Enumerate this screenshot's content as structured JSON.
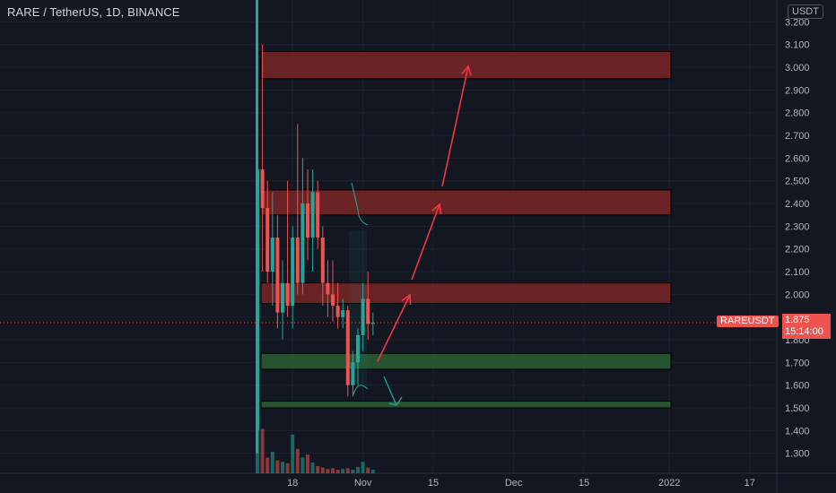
{
  "header": {
    "title": "RARE / TetherUS, 1D, BINANCE",
    "currency": "USDT"
  },
  "price_tag": {
    "symbol": "RAREUSDT",
    "price": "1.875",
    "countdown": "15:14:00"
  },
  "colors": {
    "background": "#131722",
    "up": "#26a69a",
    "down": "#ef5350",
    "resistance_zone": "#7a2626",
    "support_zone": "#2b5e34",
    "arrow": "#f23645"
  },
  "chart_data": {
    "type": "candlestick",
    "symbol": "RARE / TetherUS",
    "interval": "1D",
    "exchange": "BINANCE",
    "currency": "USDT",
    "y_ticks": [
      "1.300",
      "1.400",
      "1.500",
      "1.600",
      "1.700",
      "1.800",
      "1.900",
      "2.000",
      "2.100",
      "2.200",
      "2.300",
      "2.400",
      "2.500",
      "2.600",
      "2.700",
      "2.800",
      "2.900",
      "3.000",
      "3.100",
      "3.200"
    ],
    "x_ticks": [
      "18",
      "Nov",
      "15",
      "Dec",
      "15",
      "2022",
      "17"
    ],
    "last_price": 1.875,
    "candles": [
      {
        "date": "2021-10-11",
        "o": 1.4,
        "h": 3.6,
        "l": 1.3,
        "c": 2.55
      },
      {
        "date": "2021-10-12",
        "o": 2.55,
        "h": 3.1,
        "l": 2.1,
        "c": 2.38
      },
      {
        "date": "2021-10-13",
        "o": 2.38,
        "h": 2.5,
        "l": 2.05,
        "c": 2.1
      },
      {
        "date": "2021-10-14",
        "o": 2.1,
        "h": 2.45,
        "l": 1.95,
        "c": 2.25
      },
      {
        "date": "2021-10-15",
        "o": 2.25,
        "h": 2.35,
        "l": 1.85,
        "c": 1.92
      },
      {
        "date": "2021-10-16",
        "o": 1.92,
        "h": 2.15,
        "l": 1.8,
        "c": 2.05
      },
      {
        "date": "2021-10-17",
        "o": 2.05,
        "h": 2.5,
        "l": 1.9,
        "c": 1.95
      },
      {
        "date": "2021-10-18",
        "o": 1.95,
        "h": 2.3,
        "l": 1.85,
        "c": 2.25
      },
      {
        "date": "2021-10-19",
        "o": 2.25,
        "h": 2.75,
        "l": 2.0,
        "c": 2.05
      },
      {
        "date": "2021-10-20",
        "o": 2.05,
        "h": 2.6,
        "l": 2.0,
        "c": 2.4
      },
      {
        "date": "2021-10-21",
        "o": 2.4,
        "h": 2.55,
        "l": 2.15,
        "c": 2.25
      },
      {
        "date": "2021-10-22",
        "o": 2.25,
        "h": 2.55,
        "l": 2.1,
        "c": 2.45
      },
      {
        "date": "2021-10-23",
        "o": 2.45,
        "h": 2.5,
        "l": 2.2,
        "c": 2.25
      },
      {
        "date": "2021-10-24",
        "o": 2.25,
        "h": 2.3,
        "l": 1.95,
        "c": 2.05
      },
      {
        "date": "2021-10-25",
        "o": 2.05,
        "h": 2.15,
        "l": 1.9,
        "c": 2.0
      },
      {
        "date": "2021-10-26",
        "o": 2.0,
        "h": 2.15,
        "l": 1.88,
        "c": 1.95
      },
      {
        "date": "2021-10-27",
        "o": 1.95,
        "h": 2.05,
        "l": 1.85,
        "c": 1.9
      },
      {
        "date": "2021-10-28",
        "o": 1.9,
        "h": 1.98,
        "l": 1.85,
        "c": 1.93
      },
      {
        "date": "2021-10-29",
        "o": 1.93,
        "h": 1.95,
        "l": 1.55,
        "c": 1.6
      },
      {
        "date": "2021-10-30",
        "o": 1.6,
        "h": 1.75,
        "l": 1.55,
        "c": 1.7
      },
      {
        "date": "2021-10-31",
        "o": 1.7,
        "h": 1.85,
        "l": 1.6,
        "c": 1.82
      },
      {
        "date": "2021-11-01",
        "o": 1.82,
        "h": 2.05,
        "l": 1.75,
        "c": 1.98
      },
      {
        "date": "2021-11-02",
        "o": 1.98,
        "h": 2.1,
        "l": 1.8,
        "c": 1.87
      },
      {
        "date": "2021-11-03",
        "o": 1.87,
        "h": 1.92,
        "l": 1.82,
        "c": 1.875
      }
    ],
    "volume": [
      0.95,
      0.62,
      0.22,
      0.3,
      0.18,
      0.16,
      0.14,
      0.54,
      0.34,
      0.22,
      0.26,
      0.15,
      0.1,
      0.08,
      0.06,
      0.07,
      0.05,
      0.06,
      0.07,
      0.05,
      0.09,
      0.16,
      0.08,
      0.05
    ],
    "zones": [
      {
        "kind": "resistance",
        "from": 2.95,
        "to": 3.07
      },
      {
        "kind": "resistance",
        "from": 2.35,
        "to": 2.46
      },
      {
        "kind": "resistance",
        "from": 1.96,
        "to": 2.05
      },
      {
        "kind": "support",
        "from": 1.67,
        "to": 1.74
      },
      {
        "kind": "support",
        "from": 1.5,
        "to": 1.53
      }
    ]
  }
}
